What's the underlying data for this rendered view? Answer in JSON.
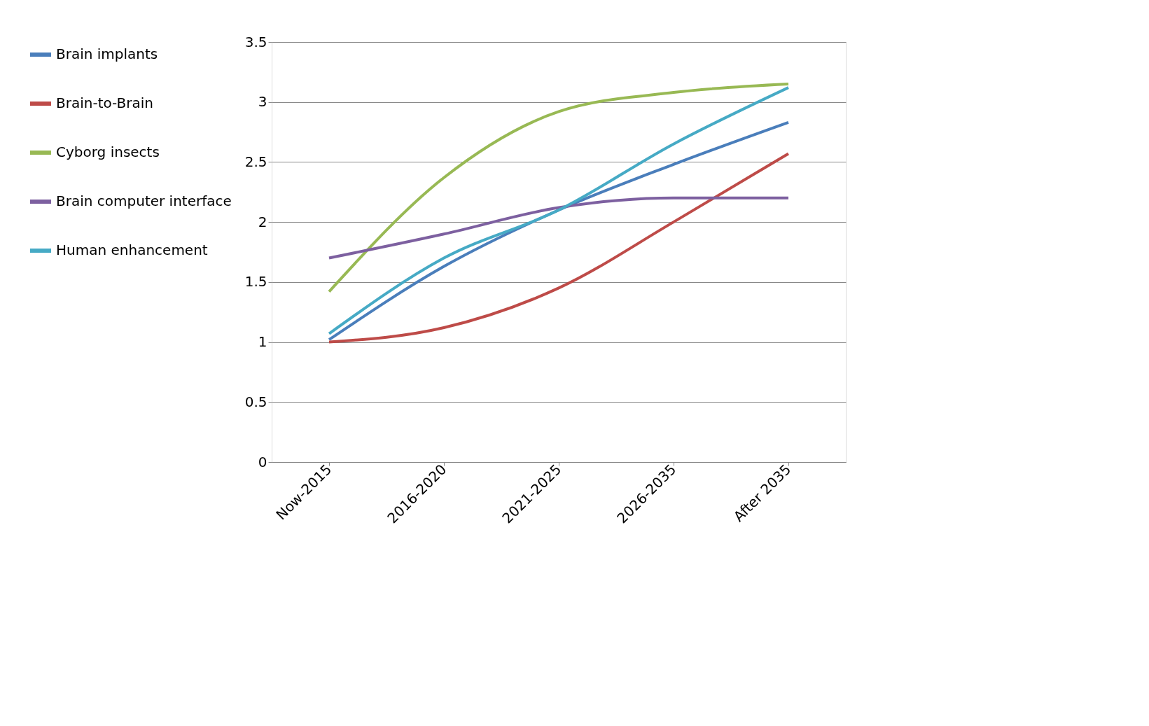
{
  "chart_data": {
    "type": "line",
    "categories": [
      "Now-2015",
      "2016-2020",
      "2021-2025",
      "2026-2035",
      "After 2035"
    ],
    "series": [
      {
        "name": "Brain implants",
        "color": "#4a7ebb",
        "values": [
          1.02,
          1.63,
          2.1,
          2.48,
          2.83
        ]
      },
      {
        "name": "Brain-to-Brain",
        "color": "#be4b48",
        "values": [
          1.0,
          1.12,
          1.45,
          2.0,
          2.57
        ]
      },
      {
        "name": "Cyborg insects",
        "color": "#98b954",
        "values": [
          1.42,
          2.37,
          2.92,
          3.08,
          3.15
        ]
      },
      {
        "name": "Brain computer interface",
        "color": "#7d60a0",
        "values": [
          1.7,
          1.9,
          2.12,
          2.2,
          2.2
        ]
      },
      {
        "name": "Human enhancement",
        "color": "#46aac5",
        "values": [
          1.07,
          1.7,
          2.1,
          2.65,
          3.12
        ]
      }
    ],
    "ylim": [
      0,
      3.5
    ],
    "yticks": [
      0,
      0.5,
      1,
      1.5,
      2,
      2.5,
      3,
      3.5
    ],
    "grid": "y",
    "legend": "left",
    "marker": "none",
    "line_style": "solid"
  }
}
